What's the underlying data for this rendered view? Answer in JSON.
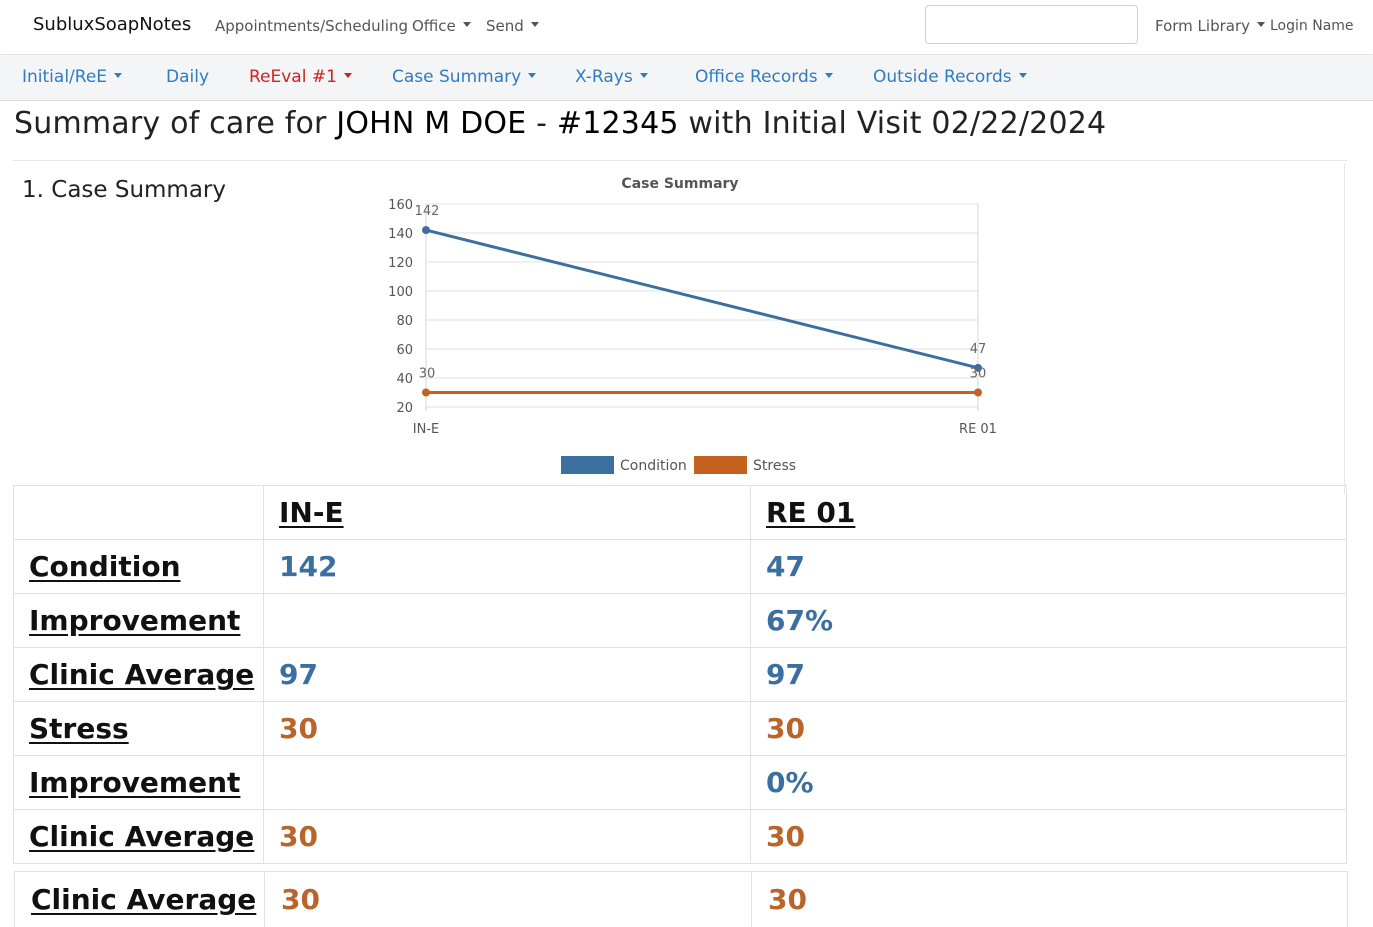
{
  "topnav": {
    "brand": "SubluxSoapNotes",
    "items": [
      {
        "label": "Appointments/Scheduling"
      },
      {
        "label": "Office"
      },
      {
        "label": "Send"
      }
    ],
    "search": {
      "value": "",
      "placeholder": ""
    },
    "form_library": "Form Library",
    "login_name": "Login Name"
  },
  "subnav": {
    "items": [
      {
        "label": "Initial/ReE"
      },
      {
        "label": "Daily"
      },
      {
        "label": "ReEval #1"
      },
      {
        "label": "Case Summary"
      },
      {
        "label": "X-Rays"
      },
      {
        "label": "Office Records"
      },
      {
        "label": "Outside Records"
      }
    ],
    "active_color": "#d32020",
    "link_color": "#2f7bc4"
  },
  "header": {
    "prefix": "Summary of care for ",
    "patient_name": "JOHN M DOE",
    "separator": " - ",
    "patient_number": "#12345",
    "suffix": " with Initial Visit 02/22/2024"
  },
  "section": {
    "heading": "1. Case Summary"
  },
  "chart_data": {
    "type": "line",
    "title": "Case Summary",
    "categories": [
      "IN-E",
      "RE 01"
    ],
    "series": [
      {
        "name": "Condition",
        "values": [
          142,
          47
        ],
        "color": "#3b6fa0"
      },
      {
        "name": "Stress",
        "values": [
          30,
          30
        ],
        "color": "#c4611f"
      }
    ],
    "yticks": [
      20,
      40,
      60,
      80,
      100,
      120,
      140,
      160
    ],
    "ylim": [
      20,
      160
    ],
    "xlabel": "",
    "ylabel": "",
    "grid": true,
    "legend": "bottom"
  },
  "table": {
    "columns": [
      "",
      "IN-E",
      "RE 01"
    ],
    "rows": [
      {
        "label": "Condition",
        "cells": [
          "142",
          "47"
        ],
        "tone": "blue"
      },
      {
        "label": "Improvement",
        "cells": [
          "",
          "67%"
        ],
        "tone": "blue"
      },
      {
        "label": "Clinic Average",
        "cells": [
          "97",
          "97"
        ],
        "tone": "blue"
      },
      {
        "label": "Stress",
        "cells": [
          "30",
          "30"
        ],
        "tone": "orange"
      },
      {
        "label": "Improvement",
        "cells": [
          "",
          "0%"
        ],
        "tone": "blue"
      },
      {
        "label": "Clinic Average",
        "cells": [
          "30",
          "30"
        ],
        "tone": "orange"
      }
    ],
    "extra_row": {
      "label": "Clinic Average",
      "cells": [
        "30",
        "30"
      ],
      "tone": "orange"
    }
  }
}
